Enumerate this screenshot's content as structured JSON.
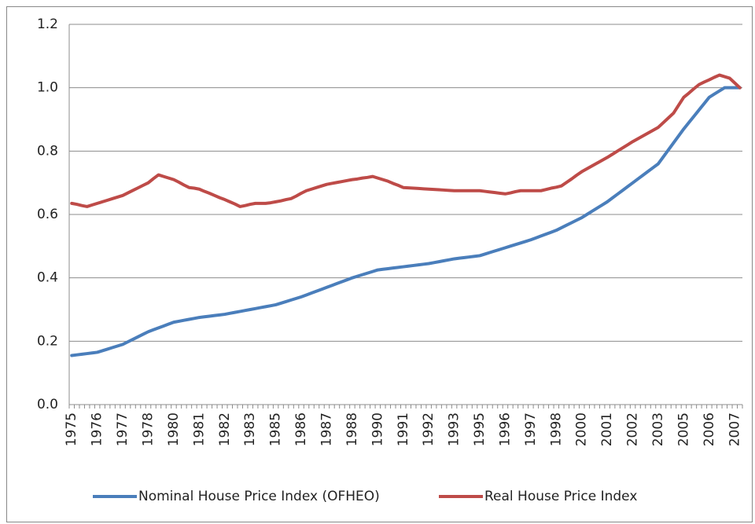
{
  "chart_data": {
    "type": "line",
    "categories": [
      "1975",
      null,
      null,
      null,
      null,
      "1976",
      null,
      null,
      null,
      null,
      "1977",
      null,
      null,
      null,
      null,
      "1978",
      null,
      null,
      null,
      null,
      "1980",
      null,
      null,
      null,
      null,
      "1981",
      null,
      null,
      null,
      null,
      "1982",
      null,
      null,
      null,
      null,
      "1983",
      null,
      null,
      null,
      null,
      "1985",
      null,
      null,
      null,
      null,
      "1986",
      null,
      null,
      null,
      null,
      "1987",
      null,
      null,
      null,
      null,
      "1988",
      null,
      null,
      null,
      null,
      "1990",
      null,
      null,
      null,
      null,
      "1991",
      null,
      null,
      null,
      null,
      "1992",
      null,
      null,
      null,
      null,
      "1993",
      null,
      null,
      null,
      null,
      "1995",
      null,
      null,
      null,
      null,
      "1996",
      null,
      null,
      null,
      null,
      "1997",
      null,
      null,
      null,
      null,
      "1998",
      null,
      null,
      null,
      null,
      "2000",
      null,
      null,
      null,
      null,
      "2001",
      null,
      null,
      null,
      null,
      "2002",
      null,
      null,
      null,
      null,
      "2003",
      null,
      null,
      null,
      null,
      "2005",
      null,
      null,
      null,
      null,
      "2006",
      null,
      null,
      null,
      null,
      "2007",
      null
    ],
    "series": [
      {
        "name": "Nominal House Price Index (OFHEO)",
        "color": "#4a7ebb",
        "values": [
          0.155,
          0.157,
          0.159,
          0.161,
          0.163,
          0.165,
          0.17,
          0.175,
          0.18,
          0.185,
          0.19,
          0.198,
          0.206,
          0.214,
          0.222,
          0.23,
          0.236,
          0.242,
          0.248,
          0.254,
          0.26,
          0.263,
          0.266,
          0.269,
          0.272,
          0.275,
          0.277,
          0.279,
          0.281,
          0.283,
          0.285,
          0.288,
          0.291,
          0.294,
          0.297,
          0.3,
          0.303,
          0.306,
          0.309,
          0.312,
          0.315,
          0.32,
          0.325,
          0.33,
          0.335,
          0.34,
          0.346,
          0.352,
          0.358,
          0.364,
          0.37,
          0.376,
          0.382,
          0.388,
          0.394,
          0.4,
          0.405,
          0.41,
          0.415,
          0.42,
          0.425,
          0.427,
          0.429,
          0.431,
          0.433,
          0.435,
          0.437,
          0.439,
          0.441,
          0.443,
          0.445,
          0.448,
          0.451,
          0.454,
          0.457,
          0.46,
          0.462,
          0.464,
          0.466,
          0.468,
          0.47,
          0.475,
          0.48,
          0.485,
          0.49,
          0.495,
          0.5,
          0.505,
          0.51,
          0.515,
          0.52,
          0.526,
          0.532,
          0.538,
          0.544,
          0.55,
          0.558,
          0.566,
          0.574,
          0.582,
          0.59,
          0.6,
          0.61,
          0.62,
          0.63,
          0.64,
          0.652,
          0.664,
          0.676,
          0.688,
          0.7,
          0.712,
          0.724,
          0.736,
          0.748,
          0.76,
          0.782,
          0.804,
          0.826,
          0.848,
          0.87,
          0.89,
          0.91,
          0.93,
          0.95,
          0.97,
          0.98,
          0.99,
          1.0,
          1.0,
          1.0,
          1.0
        ]
      },
      {
        "name": "Real House Price Index",
        "color": "#be4b48",
        "values": [
          0.635,
          0.632,
          0.628,
          0.625,
          0.63,
          0.635,
          0.64,
          0.645,
          0.65,
          0.655,
          0.66,
          0.668,
          0.676,
          0.684,
          0.692,
          0.7,
          0.713,
          0.725,
          0.72,
          0.715,
          0.71,
          0.702,
          0.693,
          0.685,
          0.683,
          0.68,
          0.673,
          0.667,
          0.66,
          0.653,
          0.647,
          0.64,
          0.633,
          0.625,
          0.628,
          0.632,
          0.635,
          0.635,
          0.635,
          0.637,
          0.64,
          0.643,
          0.647,
          0.65,
          0.658,
          0.667,
          0.675,
          0.68,
          0.685,
          0.69,
          0.695,
          0.698,
          0.701,
          0.704,
          0.707,
          0.71,
          0.712,
          0.715,
          0.717,
          0.72,
          0.715,
          0.71,
          0.705,
          0.698,
          0.692,
          0.685,
          0.684,
          0.683,
          0.682,
          0.681,
          0.68,
          0.679,
          0.678,
          0.677,
          0.676,
          0.675,
          0.675,
          0.675,
          0.675,
          0.675,
          0.675,
          0.673,
          0.671,
          0.669,
          0.667,
          0.665,
          0.668,
          0.672,
          0.675,
          0.675,
          0.675,
          0.675,
          0.675,
          0.679,
          0.683,
          0.686,
          0.69,
          0.701,
          0.712,
          0.724,
          0.735,
          0.744,
          0.753,
          0.762,
          0.771,
          0.78,
          0.79,
          0.8,
          0.81,
          0.82,
          0.83,
          0.839,
          0.848,
          0.857,
          0.866,
          0.875,
          0.89,
          0.905,
          0.92,
          0.945,
          0.97,
          0.983,
          0.997,
          1.01,
          1.018,
          1.025,
          1.033,
          1.04,
          1.035,
          1.03,
          1.015,
          1.0
        ]
      }
    ],
    "ylim": [
      0,
      1.2
    ],
    "yticks": [
      {
        "value": 0,
        "label": "0.0"
      },
      0.2,
      0.4,
      0.6,
      0.8,
      {
        "value": 1,
        "label": "1.0"
      },
      1.2
    ],
    "grid": true,
    "legend": "bottom"
  }
}
